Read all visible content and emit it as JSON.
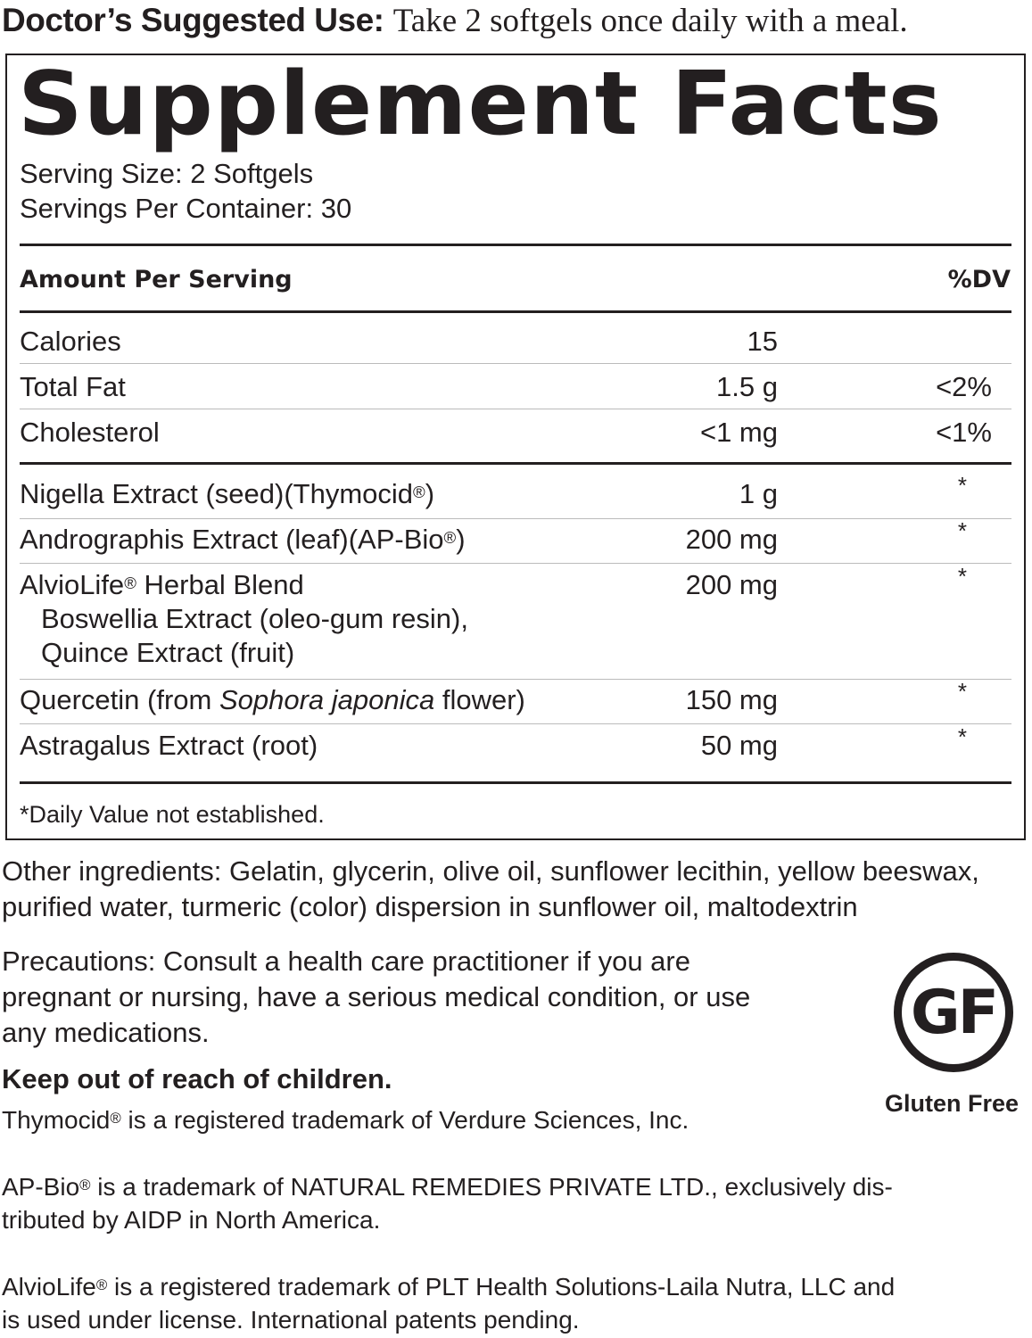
{
  "usage": {
    "label": "Doctor’s Suggested Use:",
    "text": "Take 2 softgels once daily with a meal."
  },
  "facts": {
    "title": "Supplement Facts",
    "serving_size": "Serving Size: 2 Softgels",
    "servings_per_container": "Servings Per Container: 30",
    "header_amount": "Amount Per Serving",
    "header_dv": "%DV",
    "nutrients": [
      {
        "name": "Calories",
        "amount": "15",
        "dv": ""
      },
      {
        "name": "Total Fat",
        "amount": "1.5 g",
        "dv": "<2%"
      },
      {
        "name": "Cholesterol",
        "amount": "<1 mg",
        "dv": "<1%"
      }
    ],
    "ingredients": [
      {
        "name": "Nigella Extract (seed)(Thymocid",
        "reg": "®",
        ")": "",
        "suffix": ")",
        "amount": "1 g",
        "dv": "*"
      },
      {
        "name": "Andrographis Extract (leaf)(AP-Bio",
        "reg": "®",
        "suffix": ")",
        "amount": "200 mg",
        "dv": "*"
      },
      {
        "name": "AlvioLife",
        "reg": "®",
        "suffix": " Herbal Blend",
        "sub1": "Boswellia Extract (oleo-gum resin),",
        "sub2": "Quince Extract (fruit)",
        "amount": "200 mg",
        "dv": "*"
      },
      {
        "name": "Quercetin (from ",
        "italic": "Sophora japonica",
        "suffix": " flower)",
        "amount": "150 mg",
        "dv": "*"
      },
      {
        "name": "Astragalus Extract (root)",
        "amount": "50 mg",
        "dv": "*"
      }
    ],
    "footnote": "*Daily Value not established."
  },
  "other_ingredients": [
    "Other ingredients: Gelatin, glycerin, olive oil, sunflower lecithin, yellow beeswax,",
    "purified water, turmeric (color) dispersion in sunflower oil, maltodextrin"
  ],
  "precautions": [
    "Precautions: Consult a health care practitioner if you are",
    "pregnant or nursing, have a serious medical condition, or use",
    "any medications."
  ],
  "keep_out": "Keep out of reach of children.",
  "badge": {
    "logo": "GF",
    "label": "Gluten Free"
  },
  "trademarks": {
    "t1": {
      "a": "Thymocid",
      "reg": "®",
      "b": " is a registered trademark of Verdure Sciences, Inc."
    },
    "t2": {
      "a": "AP-Bio",
      "reg": "®",
      "b": " is a trademark of NATURAL REMEDIES PRIVATE LTD., exclusively dis-",
      "c": "tributed by AIDP in North America."
    },
    "t3": {
      "a": "AlvioLife",
      "reg": "®",
      "b": " is a registered trademark of PLT Health Solutions-Laila Nutra, LLC and",
      "c": "is used under license. International patents pending."
    }
  }
}
